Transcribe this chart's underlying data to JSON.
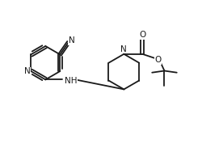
{
  "bg_color": "#ffffff",
  "line_color": "#1a1a1a",
  "line_width": 1.3,
  "font_size": 7.5,
  "figsize": [
    2.5,
    1.99
  ],
  "dpi": 100,
  "xlim": [
    0.0,
    1.0
  ],
  "ylim": [
    0.05,
    0.95
  ]
}
